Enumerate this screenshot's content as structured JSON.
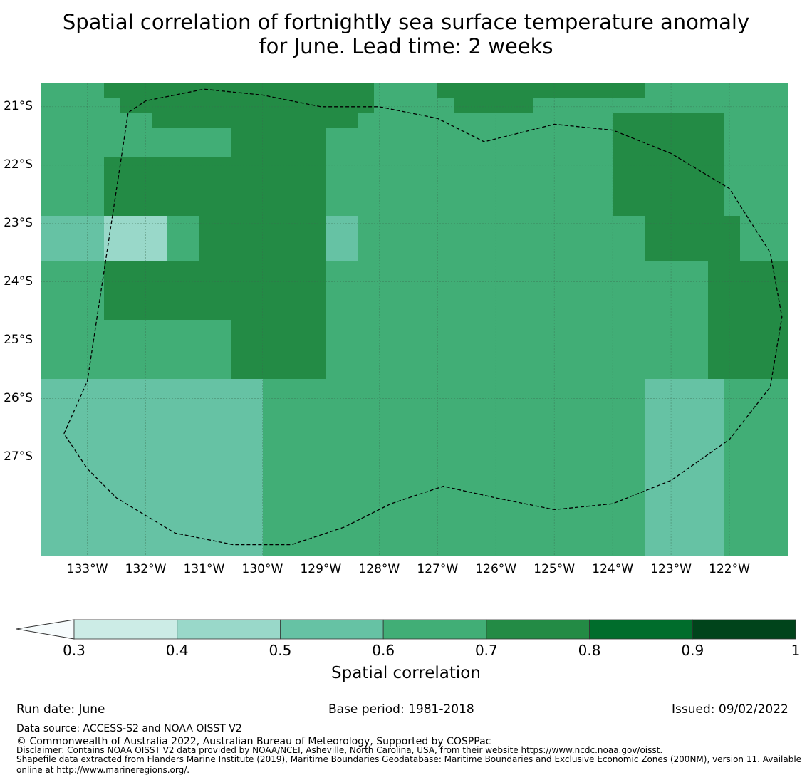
{
  "title_line1": "Spatial correlation of fortnightly sea surface temperature anomaly",
  "title_line2": "for June. Lead time: 2 weeks",
  "lat_labels": [
    "21°S",
    "22°S",
    "23°S",
    "24°S",
    "25°S",
    "26°S",
    "27°S"
  ],
  "lon_labels": [
    "133°W",
    "132°W",
    "131°W",
    "130°W",
    "129°W",
    "128°W",
    "127°W",
    "126°W",
    "125°W",
    "124°W",
    "123°W",
    "122°W"
  ],
  "colorbar": {
    "label": "Spatial correlation",
    "ticks": [
      "0.3",
      "0.4",
      "0.5",
      "0.6",
      "0.7",
      "0.8",
      "0.9",
      "1"
    ],
    "bins": [
      {
        "range": "<0.3",
        "color": "#f7fcfd"
      },
      {
        "range": "0.3-0.4",
        "color": "#ccece6"
      },
      {
        "range": "0.4-0.5",
        "color": "#99d8c9"
      },
      {
        "range": "0.5-0.6",
        "color": "#66c2a4"
      },
      {
        "range": "0.6-0.7",
        "color": "#41ae76"
      },
      {
        "range": "0.7-0.8",
        "color": "#238b45"
      },
      {
        "range": "0.8-0.9",
        "color": "#006d2c"
      },
      {
        "range": "0.9-1",
        "color": "#00441b"
      }
    ]
  },
  "map_extent": {
    "lon_west": -133.8,
    "lon_east": -121.0,
    "lat_north": -20.6,
    "lat_south": -28.7
  },
  "grid_step_deg": 0.25,
  "grid": [
    "44445555555555555555544445555555555555444444444",
    "44444555555555555555544444555554444444444444444",
    "44444445555555555555444444444444444455555554444",
    "44444444444455555544444444444444444455555554444",
    "44444444444455555544444444444444444455555554444",
    "44445555555555555544444444444444444455555554444",
    "44445555555555555544444444444444444455555554444",
    "44445555555555555544444444444444444455555554444",
    "44445555555555555544444444444444444455555554444",
    "33332222445555555533444444444444444444555555444",
    "33332222445555555533444444444444444444555555444",
    "33332222445555555533444444444444444444555555444",
    "44445555555555555544444444444444444444444455555",
    "44445555555555555544444444444444444444444455555",
    "44445555555555555544444444444444444444444455555",
    "44445555555555555544444444444444444444444455555",
    "44444444444455555544444444444444444444444455555",
    "44444444444455555544444444444444444444444455555",
    "44444444444455555544444444444444444444444455555",
    "44444444444455555544444444444444444444444455555",
    "33333333333333444444444444444444444444333334444",
    "33333333333333444444444444444444444444333334444",
    "33333333333333444444444444444444444444333334444",
    "33333333333333444444444444444444444444333334444",
    "33333333333333444444444444444444444444333334444",
    "33333333333333444444444444444444444444333334444",
    "33333333333333444444444444444444444444333334444",
    "33333333333333444444444444444444444444333334444",
    "33333333333333444444444444444444444444333334444",
    "33333333333333444444444444444444444444333334444",
    "33333333333333444444444444444444444444333334444",
    "33333333333333444444444444444444444444333334444"
  ],
  "outline": [
    [
      -133.4,
      -26.6
    ],
    [
      -133.0,
      -25.7
    ],
    [
      -132.3,
      -21.1
    ],
    [
      -132.0,
      -20.9
    ],
    [
      -131.0,
      -20.7
    ],
    [
      -130.0,
      -20.8
    ],
    [
      -129.0,
      -21.0
    ],
    [
      -128.0,
      -21.0
    ],
    [
      -127.0,
      -21.2
    ],
    [
      -126.2,
      -21.6
    ],
    [
      -125.0,
      -21.3
    ],
    [
      -124.0,
      -21.4
    ],
    [
      -123.0,
      -21.8
    ],
    [
      -122.0,
      -22.4
    ],
    [
      -121.3,
      -23.5
    ],
    [
      -121.1,
      -24.6
    ],
    [
      -121.3,
      -25.8
    ],
    [
      -122.0,
      -26.7
    ],
    [
      -123.0,
      -27.4
    ],
    [
      -124.0,
      -27.8
    ],
    [
      -125.0,
      -27.9
    ],
    [
      -126.0,
      -27.7
    ],
    [
      -126.9,
      -27.5
    ],
    [
      -127.8,
      -27.8
    ],
    [
      -128.6,
      -28.2
    ],
    [
      -129.5,
      -28.5
    ],
    [
      -130.5,
      -28.5
    ],
    [
      -131.5,
      -28.3
    ],
    [
      -132.5,
      -27.7
    ],
    [
      -133.0,
      -27.2
    ],
    [
      -133.4,
      -26.6
    ]
  ],
  "run_date": "Run date: June",
  "base_period": "Base period: 1981-2018",
  "issued": "Issued: 09/02/2022",
  "data_source": "Data source: ACCESS-S2 and NOAA OISST V2",
  "copyright": "© Commonwealth of Australia 2022, Australian Bureau of Meteorology, Supported by COSPPac",
  "disclaimer": "Disclaimer: Contains NOAA OISST V2 data provided by NOAA/NCEI, Asheville, North Carolina, USA, from their website https://www.ncdc.noaa.gov/oisst.",
  "shapefile_note": "Shapefile data extracted from Flanders Marine Institute (2019), Maritime Boundaries Geodatabase: Maritime Boundaries and Exclusive Economic Zones (200NM), version 11. Available online at http://www.marineregions.org/."
}
